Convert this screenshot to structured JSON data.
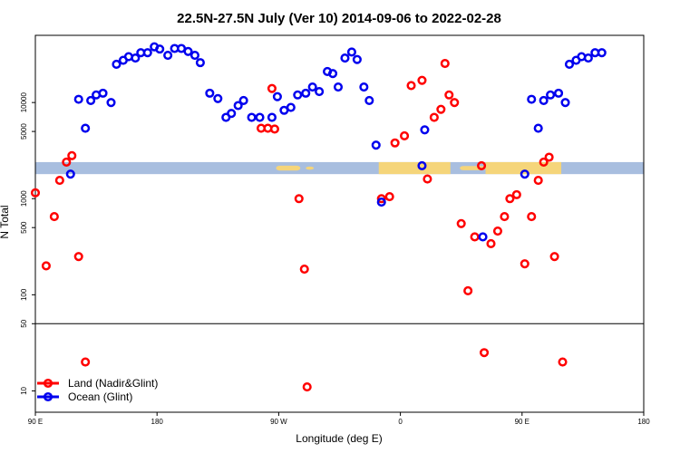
{
  "chart_data": {
    "type": "scatter",
    "title": "22.5N-27.5N July (Ver 10)   2014-09-06 to 2022-02-28",
    "xlabel": "Longitude (deg E)",
    "ylabel": "N Total",
    "x_ticks": [
      {
        "value": 90,
        "label": "90 E"
      },
      {
        "value": 180,
        "label": "180"
      },
      {
        "value": 270,
        "label": "90 W"
      },
      {
        "value": 360,
        "label": "0"
      },
      {
        "value": 450,
        "label": "90 E"
      },
      {
        "value": 540,
        "label": "180"
      }
    ],
    "y_ticks": [
      {
        "value": 10,
        "label": "10"
      },
      {
        "value": 50,
        "label": "50"
      },
      {
        "value": 100,
        "label": "100"
      },
      {
        "value": 500,
        "label": "500"
      },
      {
        "value": 1000,
        "label": "1000"
      },
      {
        "value": 5000,
        "label": "5000"
      },
      {
        "value": 10000,
        "label": "10000"
      }
    ],
    "xlim": [
      90,
      540
    ],
    "y_scale": "log",
    "ylim": [
      6,
      50000
    ],
    "panel_divider_y": 50,
    "land_mask_band_y": [
      1800,
      2400
    ],
    "land_mask_colors": {
      "ocean": "#a8bedf",
      "land": "#f5d57a"
    },
    "legend_position": "bottom-left",
    "series": [
      {
        "name": "Land (Nadir&Glint)",
        "color": "#ff0000",
        "points": [
          [
            90,
            1150
          ],
          [
            98,
            200
          ],
          [
            104,
            650
          ],
          [
            108,
            1550
          ],
          [
            113,
            2400
          ],
          [
            117,
            2800
          ],
          [
            122,
            250
          ],
          [
            127,
            20
          ],
          [
            257,
            5400
          ],
          [
            262,
            5400
          ],
          [
            265,
            14000
          ],
          [
            267,
            5300
          ],
          [
            285,
            1000
          ],
          [
            289,
            185
          ],
          [
            291,
            11
          ],
          [
            346,
            1000
          ],
          [
            352,
            1050
          ],
          [
            356,
            3800
          ],
          [
            363,
            4500
          ],
          [
            368,
            15000
          ],
          [
            376,
            17000
          ],
          [
            380,
            1600
          ],
          [
            385,
            7000
          ],
          [
            390,
            8500
          ],
          [
            393,
            25500
          ],
          [
            396,
            12000
          ],
          [
            400,
            10000
          ],
          [
            405,
            550
          ],
          [
            410,
            110
          ],
          [
            415,
            400
          ],
          [
            420,
            2200
          ],
          [
            422,
            25
          ],
          [
            427,
            340
          ],
          [
            432,
            460
          ],
          [
            437,
            650
          ],
          [
            441,
            1000
          ],
          [
            446,
            1100
          ],
          [
            452,
            210
          ],
          [
            457,
            650
          ],
          [
            462,
            1550
          ],
          [
            466,
            2400
          ],
          [
            470,
            2700
          ],
          [
            474,
            250
          ],
          [
            480,
            20
          ]
        ]
      },
      {
        "name": "Ocean (Glint)",
        "color": "#0000ee",
        "points": [
          [
            116,
            1800
          ],
          [
            122,
            10800
          ],
          [
            127,
            5400
          ],
          [
            131,
            10500
          ],
          [
            135,
            12000
          ],
          [
            140,
            12500
          ],
          [
            146,
            10000
          ],
          [
            150,
            25000
          ],
          [
            155,
            27500
          ],
          [
            159,
            30000
          ],
          [
            164,
            29000
          ],
          [
            168,
            33000
          ],
          [
            173,
            33000
          ],
          [
            178,
            38000
          ],
          [
            182,
            36000
          ],
          [
            188,
            31000
          ],
          [
            193,
            36500
          ],
          [
            198,
            36500
          ],
          [
            203,
            34000
          ],
          [
            208,
            31000
          ],
          [
            212,
            26000
          ],
          [
            219,
            12500
          ],
          [
            225,
            11000
          ],
          [
            231,
            7000
          ],
          [
            235,
            7700
          ],
          [
            240,
            9300
          ],
          [
            244,
            10500
          ],
          [
            250,
            7000
          ],
          [
            256,
            7000
          ],
          [
            265,
            7000
          ],
          [
            269,
            11500
          ],
          [
            274,
            8300
          ],
          [
            279,
            8900
          ],
          [
            284,
            12000
          ],
          [
            290,
            12500
          ],
          [
            295,
            14500
          ],
          [
            300,
            13000
          ],
          [
            306,
            21000
          ],
          [
            310,
            20000
          ],
          [
            314,
            14500
          ],
          [
            319,
            29000
          ],
          [
            324,
            33500
          ],
          [
            328,
            28000
          ],
          [
            333,
            14500
          ],
          [
            337,
            10500
          ],
          [
            342,
            3600
          ],
          [
            346,
            920
          ],
          [
            376,
            2200
          ],
          [
            378,
            5200
          ],
          [
            421,
            400
          ],
          [
            452,
            1800
          ],
          [
            457,
            10800
          ],
          [
            462,
            5400
          ],
          [
            466,
            10500
          ],
          [
            471,
            12000
          ],
          [
            477,
            12500
          ],
          [
            482,
            10000
          ],
          [
            485,
            25000
          ],
          [
            490,
            27500
          ],
          [
            494,
            30000
          ],
          [
            499,
            29000
          ],
          [
            504,
            33000
          ],
          [
            509,
            33000
          ]
        ]
      }
    ]
  }
}
